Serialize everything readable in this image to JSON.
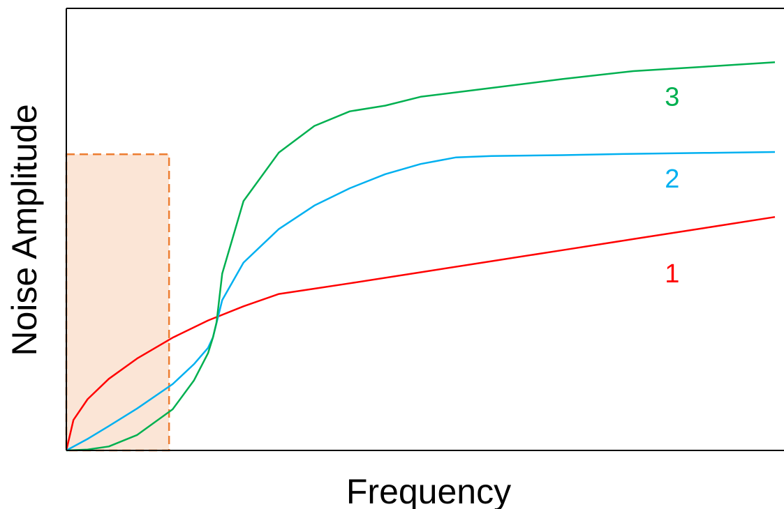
{
  "chart_data": {
    "type": "line",
    "title": "",
    "xlabel": "Frequency",
    "ylabel": "Noise Amplitude",
    "x_ticks": false,
    "y_ticks": false,
    "grid": false,
    "xlim": [
      0,
      1
    ],
    "ylim": [
      0,
      1
    ],
    "highlight_region": {
      "x_range": [
        0,
        0.145
      ],
      "y_range": [
        0,
        0.67
      ],
      "fill": "#fbe5d6",
      "stroke": "#ed7d31",
      "style": "dashed"
    },
    "series": [
      {
        "name": "1",
        "color": "#ff0000",
        "points": [
          [
            0.0,
            0.0
          ],
          [
            0.01,
            0.069
          ],
          [
            0.03,
            0.116
          ],
          [
            0.06,
            0.162
          ],
          [
            0.1,
            0.208
          ],
          [
            0.15,
            0.255
          ],
          [
            0.2,
            0.294
          ],
          [
            0.25,
            0.326
          ],
          [
            0.3,
            0.354
          ],
          [
            0.35,
            0.366
          ],
          [
            0.4,
            0.378
          ],
          [
            0.5,
            0.403
          ],
          [
            0.6,
            0.428
          ],
          [
            0.7,
            0.453
          ],
          [
            0.8,
            0.478
          ],
          [
            0.9,
            0.503
          ],
          [
            1.0,
            0.528
          ]
        ]
      },
      {
        "name": "2",
        "color": "#00b0f0",
        "points": [
          [
            0.0,
            0.0
          ],
          [
            0.03,
            0.026
          ],
          [
            0.06,
            0.055
          ],
          [
            0.1,
            0.095
          ],
          [
            0.15,
            0.15
          ],
          [
            0.18,
            0.195
          ],
          [
            0.2,
            0.232
          ],
          [
            0.207,
            0.256
          ],
          [
            0.21,
            0.275
          ],
          [
            0.22,
            0.34
          ],
          [
            0.25,
            0.425
          ],
          [
            0.3,
            0.501
          ],
          [
            0.35,
            0.554
          ],
          [
            0.4,
            0.593
          ],
          [
            0.45,
            0.625
          ],
          [
            0.5,
            0.648
          ],
          [
            0.55,
            0.663
          ],
          [
            0.6,
            0.666
          ],
          [
            0.7,
            0.668
          ],
          [
            0.8,
            0.671
          ],
          [
            0.9,
            0.673
          ],
          [
            1.0,
            0.675
          ]
        ]
      },
      {
        "name": "3",
        "color": "#00b050",
        "points": [
          [
            0.0,
            0.0
          ],
          [
            0.03,
            0.002
          ],
          [
            0.06,
            0.009
          ],
          [
            0.1,
            0.035
          ],
          [
            0.15,
            0.093
          ],
          [
            0.18,
            0.158
          ],
          [
            0.2,
            0.22
          ],
          [
            0.207,
            0.256
          ],
          [
            0.212,
            0.29
          ],
          [
            0.22,
            0.4
          ],
          [
            0.25,
            0.564
          ],
          [
            0.3,
            0.674
          ],
          [
            0.35,
            0.734
          ],
          [
            0.4,
            0.767
          ],
          [
            0.45,
            0.78
          ],
          [
            0.5,
            0.8
          ],
          [
            0.6,
            0.82
          ],
          [
            0.7,
            0.84
          ],
          [
            0.8,
            0.858
          ],
          [
            0.9,
            0.868
          ],
          [
            1.0,
            0.878
          ]
        ]
      }
    ],
    "label_positions": [
      {
        "series": "3",
        "x": 0.855,
        "y": 0.78
      },
      {
        "series": "2",
        "x": 0.855,
        "y": 0.595
      },
      {
        "series": "1",
        "x": 0.855,
        "y": 0.38
      }
    ]
  }
}
